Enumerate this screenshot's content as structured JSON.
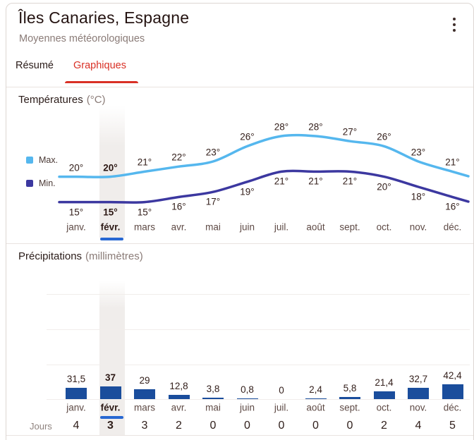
{
  "header": {
    "title": "Îles Canaries, Espagne",
    "subtitle": "Moyennes météorologiques",
    "menu_icon": "kebab-menu-icon"
  },
  "tabs": [
    {
      "label": "Résumé",
      "active": false
    },
    {
      "label": "Graphiques",
      "active": true
    }
  ],
  "sections": {
    "temperature": {
      "title": "Températures",
      "unit": "(°C)"
    },
    "precipitation": {
      "title": "Précipitations",
      "unit": "(millimètres)",
      "days_row_label": "Jours"
    }
  },
  "selected_month": "févr.",
  "selected_month_index": 1,
  "chart_data": [
    {
      "type": "line",
      "title": "Températures (°C)",
      "categories": [
        "janv.",
        "févr.",
        "mars",
        "avr.",
        "mai",
        "juin",
        "juil.",
        "août",
        "sept.",
        "oct.",
        "nov.",
        "déc."
      ],
      "series": [
        {
          "name": "Max.",
          "values": [
            20,
            20,
            21,
            22,
            23,
            26,
            28,
            28,
            27,
            26,
            23,
            21
          ],
          "labels": [
            "20°",
            "20°",
            "21°",
            "22°",
            "23°",
            "26°",
            "28°",
            "28°",
            "27°",
            "26°",
            "23°",
            "21°"
          ],
          "color": "#55b7ee"
        },
        {
          "name": "Min.",
          "values": [
            15,
            15,
            15,
            16,
            17,
            19,
            21,
            21,
            21,
            20,
            18,
            16
          ],
          "labels": [
            "15°",
            "15°",
            "15°",
            "16°",
            "17°",
            "19°",
            "21°",
            "21°",
            "21°",
            "20°",
            "18°",
            "16°"
          ],
          "color": "#3c38a0"
        }
      ],
      "ylabel": "°C",
      "grid": false,
      "legend_position": "left",
      "highlighted_month": "févr."
    },
    {
      "type": "bar",
      "title": "Précipitations (millimètres)",
      "categories": [
        "janv.",
        "févr.",
        "mars",
        "avr.",
        "mai",
        "juin",
        "juil.",
        "août",
        "sept.",
        "oct.",
        "nov.",
        "déc."
      ],
      "values": [
        31.5,
        37,
        29,
        12.8,
        3.8,
        0.8,
        0,
        2.4,
        5.8,
        21.4,
        32.7,
        42.4
      ],
      "value_labels": [
        "31,5",
        "37",
        "29",
        "12,8",
        "3,8",
        "0,8",
        "0",
        "2,4",
        "5,8",
        "21,4",
        "32,7",
        "42,4"
      ],
      "days": [
        4,
        3,
        3,
        2,
        0,
        0,
        0,
        0,
        0,
        2,
        4,
        5
      ],
      "ylabel": "millimètres",
      "ylim": [
        0,
        300
      ],
      "grid": true,
      "color": "#1a4d9c",
      "highlighted_month": "févr."
    }
  ],
  "colors": {
    "accent_red": "#d93025",
    "max_line": "#55b7ee",
    "min_line": "#3c38a0",
    "bar_blue": "#1a4d9c",
    "selected_underline": "#2767d2",
    "highlight_column": "#f0edeb"
  }
}
